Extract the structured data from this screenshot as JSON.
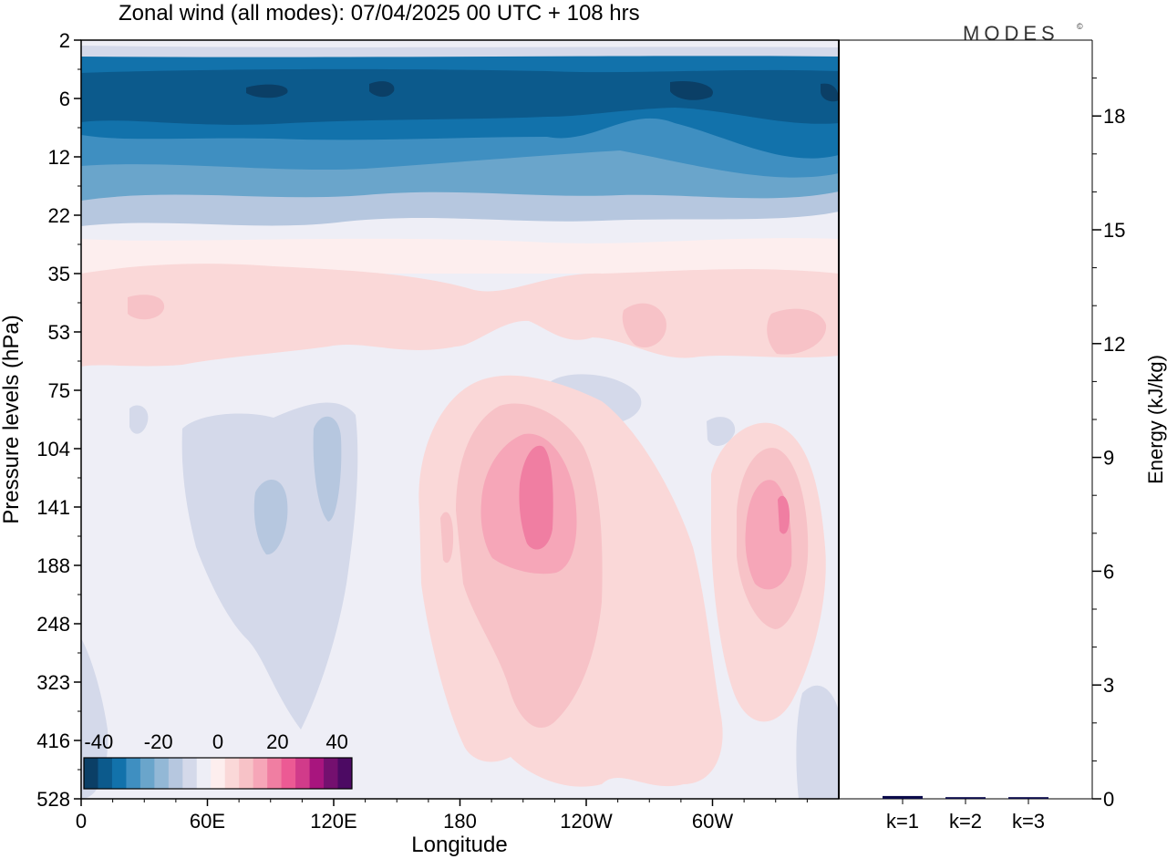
{
  "title": "Zonal wind (all modes):  07/04/2025  00 UTC  + 108 hrs",
  "logo": "MODES",
  "logo_mark": "©",
  "colors": {
    "scale": [
      "#0b3f66",
      "#0c5a8c",
      "#1272ab",
      "#3f8fc1",
      "#6aa5cb",
      "#93b8d6",
      "#b6c7df",
      "#d4d9ea",
      "#eeeef6",
      "#fdeeee",
      "#fad8d8",
      "#f7c2c7",
      "#f6a6b8",
      "#f07ea2",
      "#ec5a94",
      "#d13b8a",
      "#a8157e",
      "#74106f",
      "#4c0a63"
    ],
    "frame": "#000000"
  },
  "chart_data": [
    {
      "type": "heatmap",
      "title": "Zonal wind (all modes):  07/04/2025  00 UTC  + 108 hrs",
      "xlabel": "Longitude",
      "ylabel": "Pressure levels (hPa)",
      "x_ticks": [
        "0",
        "60E",
        "120E",
        "180",
        "120W",
        "60W"
      ],
      "x_tick_deg": [
        0,
        60,
        120,
        180,
        240,
        300
      ],
      "y_ticks": [
        "2",
        "6",
        "12",
        "22",
        "35",
        "53",
        "75",
        "104",
        "141",
        "188",
        "248",
        "323",
        "416",
        "528"
      ],
      "colorbar": {
        "tick_labels": [
          "-40",
          "-20",
          "0",
          "20",
          "40"
        ],
        "tick_values": [
          -40,
          -20,
          0,
          20,
          40
        ],
        "range": [
          -45,
          45
        ],
        "levels": 18
      }
    },
    {
      "type": "bar",
      "ylabel": "Energy (kJ/kg)",
      "categories": [
        "k=1",
        "k=2",
        "k=3"
      ],
      "values": [
        0.05,
        0.02,
        0.02
      ],
      "y_ticks": [
        "0",
        "3",
        "6",
        "9",
        "12",
        "15",
        "18"
      ],
      "ylim": [
        0,
        20
      ]
    }
  ]
}
